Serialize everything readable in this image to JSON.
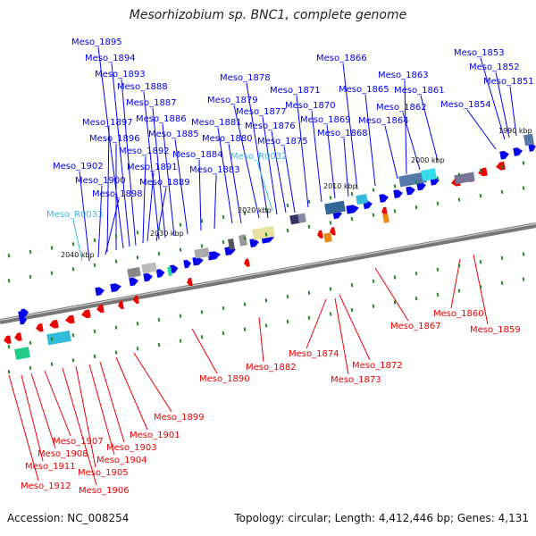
{
  "title": "Mesorhizobium sp. BNC1, complete genome",
  "accession": "Accession: NC_008254",
  "topology": "Topology: circular; Length: 4,412,446 bp; Genes: 4,131",
  "colors": {
    "forward": "#0000ee",
    "reverse": "#ee0000",
    "rna": "#33bbdd",
    "backbone": "#777777",
    "minor_tick": "#228822"
  },
  "ticks": [
    "1990 kbp",
    "2000 kbp",
    "2010 kbp",
    "2020 kbp",
    "2030 kbp",
    "2040 kbp"
  ],
  "genes_top": [
    {
      "name": "Meso_1851",
      "type": "cds"
    },
    {
      "name": "Meso_1852",
      "type": "cds"
    },
    {
      "name": "Meso_1853",
      "type": "cds"
    },
    {
      "name": "Meso_1854",
      "type": "cds"
    },
    {
      "name": "Meso_1861",
      "type": "cds"
    },
    {
      "name": "Meso_1862",
      "type": "cds"
    },
    {
      "name": "Meso_1863",
      "type": "cds"
    },
    {
      "name": "Meso_1864",
      "type": "cds"
    },
    {
      "name": "Meso_1865",
      "type": "cds"
    },
    {
      "name": "Meso_1866",
      "type": "cds"
    },
    {
      "name": "Meso_1868",
      "type": "cds"
    },
    {
      "name": "Meso_1869",
      "type": "cds"
    },
    {
      "name": "Meso_1870",
      "type": "cds"
    },
    {
      "name": "Meso_1871",
      "type": "cds"
    },
    {
      "name": "Meso_1875",
      "type": "cds"
    },
    {
      "name": "Meso_1876",
      "type": "cds"
    },
    {
      "name": "Meso_1877",
      "type": "cds"
    },
    {
      "name": "Meso_1878",
      "type": "cds"
    },
    {
      "name": "Meso_1879",
      "type": "cds"
    },
    {
      "name": "Meso_R0032",
      "type": "rna"
    },
    {
      "name": "Meso_1880",
      "type": "cds"
    },
    {
      "name": "Meso_1881",
      "type": "cds"
    },
    {
      "name": "Meso_1883",
      "type": "cds"
    },
    {
      "name": "Meso_1884",
      "type": "cds"
    },
    {
      "name": "Meso_1885",
      "type": "cds"
    },
    {
      "name": "Meso_1886",
      "type": "cds"
    },
    {
      "name": "Meso_1887",
      "type": "cds"
    },
    {
      "name": "Meso_1888",
      "type": "cds"
    },
    {
      "name": "Meso_1889",
      "type": "cds"
    },
    {
      "name": "Meso_1891",
      "type": "cds"
    },
    {
      "name": "Meso_1892",
      "type": "cds"
    },
    {
      "name": "Meso_1893",
      "type": "cds"
    },
    {
      "name": "Meso_1894",
      "type": "cds"
    },
    {
      "name": "Meso_1895",
      "type": "cds"
    },
    {
      "name": "Meso_1896",
      "type": "cds"
    },
    {
      "name": "Meso_1897",
      "type": "cds"
    },
    {
      "name": "Meso_1898",
      "type": "cds"
    },
    {
      "name": "Meso_1900",
      "type": "cds"
    },
    {
      "name": "Meso_1902",
      "type": "cds"
    },
    {
      "name": "Meso_R0033",
      "type": "rna"
    }
  ],
  "genes_bottom": [
    {
      "name": "Meso_1859",
      "type": "cds"
    },
    {
      "name": "Meso_1860",
      "type": "cds"
    },
    {
      "name": "Meso_1867",
      "type": "cds"
    },
    {
      "name": "Meso_1872",
      "type": "cds"
    },
    {
      "name": "Meso_1873",
      "type": "cds"
    },
    {
      "name": "Meso_1874",
      "type": "cds"
    },
    {
      "name": "Meso_1882",
      "type": "cds"
    },
    {
      "name": "Meso_1890",
      "type": "cds"
    },
    {
      "name": "Meso_1899",
      "type": "cds"
    },
    {
      "name": "Meso_1901",
      "type": "cds"
    },
    {
      "name": "Meso_1903",
      "type": "cds"
    },
    {
      "name": "Meso_1904",
      "type": "cds"
    },
    {
      "name": "Meso_1905",
      "type": "cds"
    },
    {
      "name": "Meso_1906",
      "type": "cds"
    },
    {
      "name": "Meso_1907",
      "type": "cds"
    },
    {
      "name": "Meso_1908",
      "type": "cds"
    },
    {
      "name": "Meso_1911",
      "type": "cds"
    },
    {
      "name": "Meso_1912",
      "type": "cds"
    }
  ]
}
